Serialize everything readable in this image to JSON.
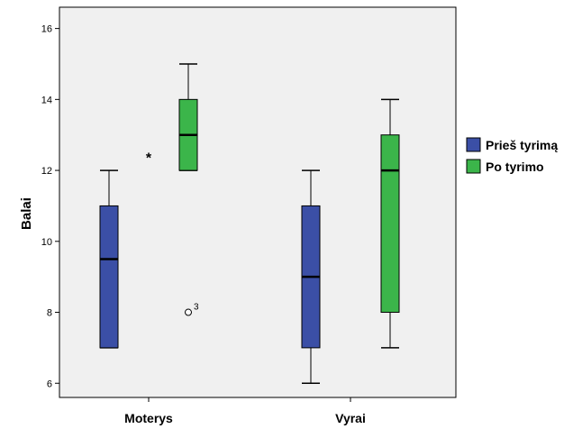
{
  "chart_data": {
    "type": "boxplot",
    "title": "",
    "ylabel": "Balai",
    "xlabel": "",
    "ylim": [
      5.6,
      16.6
    ],
    "yticks": [
      6,
      8,
      10,
      12,
      14,
      16
    ],
    "categories": [
      "Moterys",
      "Vyrai"
    ],
    "legend_position": "right",
    "grid": false,
    "background_color": "#f0f0f0",
    "series": [
      {
        "name": "Prieš tyrimą",
        "color": "#3b4fa6",
        "boxes": [
          {
            "category": "Moterys",
            "min": 7,
            "q1": 7,
            "median": 9.5,
            "q3": 11,
            "max": 12,
            "outliers": [],
            "extremes": []
          },
          {
            "category": "Vyrai",
            "min": 6,
            "q1": 7,
            "median": 9,
            "q3": 11,
            "max": 12,
            "outliers": [],
            "extremes": []
          }
        ]
      },
      {
        "name": "Po tyrimo",
        "color": "#3bb54a",
        "boxes": [
          {
            "category": "Moterys",
            "min": 12,
            "q1": 12,
            "median": 13,
            "q3": 14,
            "max": 15,
            "outliers": [
              {
                "value": 8,
                "label": "3"
              }
            ],
            "extremes": [
              {
                "value": 12.4,
                "label": ""
              }
            ]
          },
          {
            "category": "Vyrai",
            "min": 7,
            "q1": 8,
            "median": 12,
            "q3": 13,
            "max": 14,
            "outliers": [],
            "extremes": []
          }
        ]
      }
    ]
  }
}
